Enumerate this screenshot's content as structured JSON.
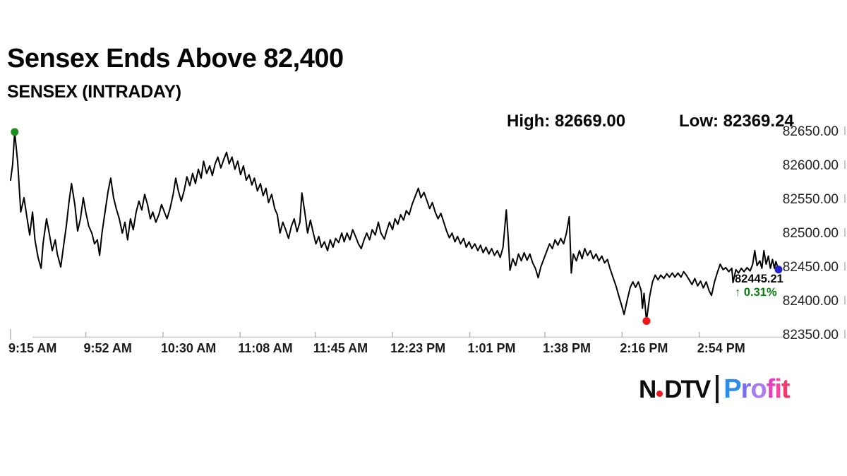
{
  "header": {
    "title": "Sensex Ends Above 82,400",
    "subtitle": "SENSEX (INTRADAY)"
  },
  "stats": {
    "high_label": "High:",
    "high_value": "82669.00",
    "low_label": "Low:",
    "low_value": "82369.24"
  },
  "callout": {
    "last_price": "82445.21",
    "arrow_up": "↑",
    "change_pct": "0.31%",
    "change_color": "#0c7d10"
  },
  "footer_logo": {
    "ndtv_part1": "N",
    "ndtv_part2": "DTV",
    "ndtv_color": "#0d0d0d",
    "dot_color": "#e8191f",
    "profit_letters": [
      [
        "P",
        "#2e8ce6"
      ],
      [
        "r",
        "#7a6cee"
      ],
      [
        "o",
        "#a87cf0"
      ],
      [
        "f",
        "#e83fc0"
      ],
      [
        "i",
        "#f545a0"
      ],
      [
        "t",
        "#f23b6a"
      ]
    ]
  },
  "chart_data": {
    "type": "line",
    "title": "SENSEX (INTRADAY)",
    "x_unit": "minutes since 9:15 AM",
    "xlim": [
      0,
      378
    ],
    "ylim": [
      82350,
      82650
    ],
    "grid": false,
    "line_color": "#000000",
    "axis_color": "#c9c9c9",
    "tick_color": "#b5b5b5",
    "xlabel_color": "#1a1a1a",
    "ylabel_color": "#222222",
    "high": 82669.0,
    "low": 82369.24,
    "last": 82445.21,
    "change_pct": 0.31,
    "y_ticks": [
      82650,
      82600,
      82550,
      82500,
      82450,
      82400,
      82350
    ],
    "x_ticks": [
      {
        "t": 0,
        "label": "9:15 AM"
      },
      {
        "t": 37,
        "label": "9:52 AM"
      },
      {
        "t": 75,
        "label": "10:30 AM"
      },
      {
        "t": 113,
        "label": "11:08 AM"
      },
      {
        "t": 150,
        "label": "11:45 AM"
      },
      {
        "t": 188,
        "label": "12:23 PM"
      },
      {
        "t": 226,
        "label": "1:01 PM"
      },
      {
        "t": 263,
        "label": "1:38 PM"
      },
      {
        "t": 301,
        "label": "2:16 PM"
      },
      {
        "t": 339,
        "label": "2:54 PM"
      }
    ],
    "markers": [
      {
        "name": "high-marker",
        "t": 2,
        "price": 82648,
        "color": "#1f8c1f"
      },
      {
        "name": "low-marker",
        "t": 313,
        "price": 82369.24,
        "color": "#ee1515"
      },
      {
        "name": "last-marker",
        "t": 378,
        "price": 82445.21,
        "color": "#2323cc"
      }
    ],
    "series": [
      [
        0,
        82577
      ],
      [
        1,
        82600
      ],
      [
        2,
        82648
      ],
      [
        3.5,
        82603
      ],
      [
        5,
        82530
      ],
      [
        6.6,
        82551
      ],
      [
        8,
        82523
      ],
      [
        9.4,
        82496
      ],
      [
        10.8,
        82530
      ],
      [
        12,
        82489
      ],
      [
        13.5,
        82463
      ],
      [
        15,
        82447
      ],
      [
        16,
        82484
      ],
      [
        17.7,
        82520
      ],
      [
        19,
        82499
      ],
      [
        20.5,
        82473
      ],
      [
        22,
        82489
      ],
      [
        23,
        82468
      ],
      [
        24.7,
        82449
      ],
      [
        26,
        82478
      ],
      [
        27.4,
        82509
      ],
      [
        28.8,
        82546
      ],
      [
        30,
        82572
      ],
      [
        31.6,
        82541
      ],
      [
        33,
        82502
      ],
      [
        34.4,
        82520
      ],
      [
        35.8,
        82551
      ],
      [
        37,
        82530
      ],
      [
        38.5,
        82509
      ],
      [
        40,
        82499
      ],
      [
        41.3,
        82483
      ],
      [
        42.7,
        82489
      ],
      [
        43.8,
        82466
      ],
      [
        45,
        82499
      ],
      [
        46.5,
        82530
      ],
      [
        48,
        82561
      ],
      [
        49.3,
        82580
      ],
      [
        50.7,
        82551
      ],
      [
        52,
        82535
      ],
      [
        53.5,
        82520
      ],
      [
        55,
        82499
      ],
      [
        56.3,
        82515
      ],
      [
        57.6,
        82489
      ],
      [
        59,
        82520
      ],
      [
        60.4,
        82504
      ],
      [
        61.8,
        82530
      ],
      [
        63.2,
        82546
      ],
      [
        64.6,
        82533
      ],
      [
        66,
        82556
      ],
      [
        67.4,
        82541
      ],
      [
        68.8,
        82520
      ],
      [
        70,
        82530
      ],
      [
        71.5,
        82515
      ],
      [
        73,
        82526
      ],
      [
        74.3,
        82541
      ],
      [
        75.7,
        82530
      ],
      [
        77,
        82520
      ],
      [
        78.5,
        82535
      ],
      [
        80,
        82556
      ],
      [
        81.3,
        82580
      ],
      [
        82.6,
        82561
      ],
      [
        84,
        82546
      ],
      [
        85.4,
        82561
      ],
      [
        86.8,
        82582
      ],
      [
        88.2,
        82569
      ],
      [
        89.6,
        82587
      ],
      [
        91,
        82572
      ],
      [
        92.4,
        82593
      ],
      [
        93.8,
        82580
      ],
      [
        95,
        82605
      ],
      [
        96.5,
        82587
      ],
      [
        98,
        82598
      ],
      [
        99.3,
        82584
      ],
      [
        100.7,
        82601
      ],
      [
        102,
        82611
      ],
      [
        103.5,
        82595
      ],
      [
        105,
        82608
      ],
      [
        106.3,
        82618
      ],
      [
        107.6,
        82601
      ],
      [
        109,
        82611
      ],
      [
        110.4,
        82593
      ],
      [
        111.8,
        82605
      ],
      [
        113.2,
        82585
      ],
      [
        114.6,
        82598
      ],
      [
        116,
        82577
      ],
      [
        117.4,
        82585
      ],
      [
        118.8,
        82570
      ],
      [
        120,
        82580
      ],
      [
        121.5,
        82561
      ],
      [
        123,
        82572
      ],
      [
        124.3,
        82554
      ],
      [
        125.7,
        82565
      ],
      [
        127,
        82544
      ],
      [
        128.5,
        82556
      ],
      [
        130,
        82535
      ],
      [
        131.3,
        82526
      ],
      [
        132.6,
        82499
      ],
      [
        134,
        82515
      ],
      [
        135.4,
        82504
      ],
      [
        136.8,
        82491
      ],
      [
        138.2,
        82509
      ],
      [
        139.6,
        82520
      ],
      [
        141,
        82501
      ],
      [
        142.4,
        82515
      ],
      [
        143.4,
        82558
      ],
      [
        144.8,
        82530
      ],
      [
        146.2,
        82499
      ],
      [
        147.6,
        82518
      ],
      [
        149,
        82499
      ],
      [
        150.3,
        82483
      ],
      [
        151.7,
        82494
      ],
      [
        153,
        82478
      ],
      [
        154.5,
        82486
      ],
      [
        156,
        82473
      ],
      [
        157.3,
        82489
      ],
      [
        158.7,
        82478
      ],
      [
        160,
        82491
      ],
      [
        161.5,
        82485
      ],
      [
        163,
        82499
      ],
      [
        164.2,
        82486
      ],
      [
        165.6,
        82499
      ],
      [
        167,
        82489
      ],
      [
        168.4,
        82504
      ],
      [
        169.8,
        82494
      ],
      [
        171.2,
        82483
      ],
      [
        172.6,
        82476
      ],
      [
        174,
        82489
      ],
      [
        175.3,
        82499
      ],
      [
        176.7,
        82489
      ],
      [
        178,
        82504
      ],
      [
        179.5,
        82496
      ],
      [
        181,
        82515
      ],
      [
        182.3,
        82499
      ],
      [
        184,
        82490
      ],
      [
        185,
        82501
      ],
      [
        186.5,
        82515
      ],
      [
        188,
        82504
      ],
      [
        189.2,
        82520
      ],
      [
        190.6,
        82512
      ],
      [
        192,
        82526
      ],
      [
        193.4,
        82518
      ],
      [
        194.8,
        82532
      ],
      [
        196.2,
        82526
      ],
      [
        197.6,
        82541
      ],
      [
        199,
        82552
      ],
      [
        200.7,
        82565
      ],
      [
        202,
        82551
      ],
      [
        203.5,
        82559
      ],
      [
        205,
        82546
      ],
      [
        206.3,
        82535
      ],
      [
        207.6,
        82544
      ],
      [
        209,
        82530
      ],
      [
        210.4,
        82520
      ],
      [
        211.8,
        82528
      ],
      [
        213.2,
        82515
      ],
      [
        214.6,
        82502
      ],
      [
        216,
        82492
      ],
      [
        217.3,
        82499
      ],
      [
        218.7,
        82486
      ],
      [
        220,
        82494
      ],
      [
        221.5,
        82483
      ],
      [
        223,
        82491
      ],
      [
        224.3,
        82478
      ],
      [
        225.7,
        82486
      ],
      [
        227,
        82476
      ],
      [
        228.5,
        82483
      ],
      [
        230,
        82473
      ],
      [
        231.3,
        82481
      ],
      [
        232.6,
        82470
      ],
      [
        234,
        82478
      ],
      [
        235.4,
        82468
      ],
      [
        236.8,
        82476
      ],
      [
        238.2,
        82466
      ],
      [
        239.6,
        82473
      ],
      [
        241,
        82463
      ],
      [
        242.4,
        82478
      ],
      [
        244,
        82533
      ],
      [
        245,
        82489
      ],
      [
        245.8,
        82444
      ],
      [
        247.2,
        82461
      ],
      [
        248.6,
        82451
      ],
      [
        250,
        82468
      ],
      [
        251.4,
        82458
      ],
      [
        252.8,
        82470
      ],
      [
        254.2,
        82459
      ],
      [
        255.6,
        82468
      ],
      [
        257,
        82455
      ],
      [
        258.3,
        82447
      ],
      [
        259.7,
        82433
      ],
      [
        261,
        82449
      ],
      [
        262.5,
        82461
      ],
      [
        264,
        82473
      ],
      [
        265.3,
        82483
      ],
      [
        266.7,
        82476
      ],
      [
        268,
        82489
      ],
      [
        269.4,
        82481
      ],
      [
        270.8,
        82491
      ],
      [
        272.2,
        82483
      ],
      [
        273.6,
        82499
      ],
      [
        275,
        82523
      ],
      [
        276,
        82440
      ],
      [
        277,
        82468
      ],
      [
        278.5,
        82458
      ],
      [
        280,
        82473
      ],
      [
        281.3,
        82461
      ],
      [
        282.6,
        82476
      ],
      [
        284,
        82466
      ],
      [
        285.4,
        82473
      ],
      [
        286.8,
        82461
      ],
      [
        288.2,
        82468
      ],
      [
        289.6,
        82458
      ],
      [
        291,
        82465
      ],
      [
        292.4,
        82455
      ],
      [
        293.8,
        82460
      ],
      [
        295,
        82447
      ],
      [
        296.5,
        82434
      ],
      [
        298,
        82421
      ],
      [
        299.3,
        82407
      ],
      [
        300.7,
        82393
      ],
      [
        302,
        82379
      ],
      [
        303.5,
        82400
      ],
      [
        305,
        82419
      ],
      [
        306.3,
        82427
      ],
      [
        307.6,
        82419
      ],
      [
        309,
        82427
      ],
      [
        310.4,
        82414
      ],
      [
        311,
        82388
      ],
      [
        311.8,
        82410
      ],
      [
        313,
        82369.24
      ],
      [
        314.6,
        82406
      ],
      [
        316,
        82427
      ],
      [
        317.3,
        82437
      ],
      [
        318.7,
        82430
      ],
      [
        320,
        82437
      ],
      [
        321.5,
        82432
      ],
      [
        323,
        82439
      ],
      [
        324.3,
        82434
      ],
      [
        325.7,
        82440
      ],
      [
        327,
        82434
      ],
      [
        328.5,
        82440
      ],
      [
        330,
        82434
      ],
      [
        331.3,
        82442
      ],
      [
        332.6,
        82437
      ],
      [
        334,
        82430
      ],
      [
        335.4,
        82423
      ],
      [
        336.8,
        82432
      ],
      [
        338.2,
        82421
      ],
      [
        339.6,
        82428
      ],
      [
        341,
        82418
      ],
      [
        342.4,
        82427
      ],
      [
        343.8,
        82414
      ],
      [
        345,
        82407
      ],
      [
        346.5,
        82427
      ],
      [
        348,
        82442
      ],
      [
        349.3,
        82453
      ],
      [
        350.7,
        82445
      ],
      [
        352,
        82448
      ],
      [
        353.5,
        82442
      ],
      [
        355,
        82447
      ],
      [
        355.6,
        82426
      ],
      [
        357,
        82445
      ],
      [
        358.3,
        82440
      ],
      [
        359.7,
        82447
      ],
      [
        361,
        82442
      ],
      [
        362.5,
        82448
      ],
      [
        364,
        82443
      ],
      [
        365.3,
        82453
      ],
      [
        366.3,
        82473
      ],
      [
        367.4,
        82451
      ],
      [
        368.8,
        82458
      ],
      [
        369.8,
        82447
      ],
      [
        370.8,
        82473
      ],
      [
        371.9,
        82453
      ],
      [
        373,
        82465
      ],
      [
        374,
        82447
      ],
      [
        375,
        82460
      ],
      [
        376,
        82447
      ],
      [
        376.7,
        82457
      ],
      [
        378,
        82445.21
      ]
    ]
  }
}
